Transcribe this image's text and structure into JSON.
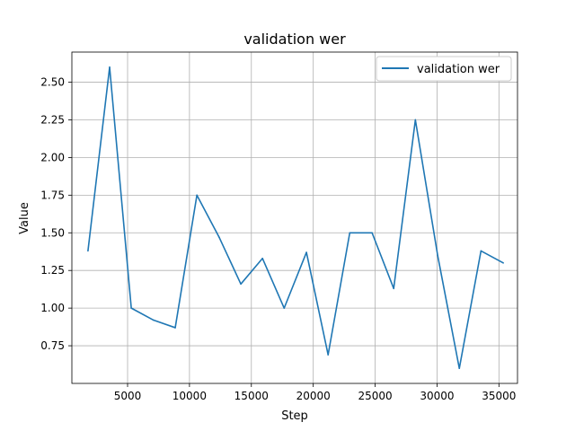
{
  "chart_data": {
    "type": "line",
    "title": "validation wer",
    "xlabel": "Step",
    "ylabel": "Value",
    "xlim": [
      500,
      36500
    ],
    "ylim": [
      0.5,
      2.7
    ],
    "xticks": [
      5000,
      10000,
      15000,
      20000,
      25000,
      30000,
      35000
    ],
    "yticks": [
      0.75,
      1.0,
      1.25,
      1.5,
      1.75,
      2.0,
      2.25,
      2.5
    ],
    "xtick_labels": [
      "5000",
      "10000",
      "15000",
      "20000",
      "25000",
      "30000",
      "35000"
    ],
    "ytick_labels": [
      "0.75",
      "1.00",
      "1.25",
      "1.50",
      "1.75",
      "2.00",
      "2.25",
      "2.50"
    ],
    "grid": true,
    "legend_position": "top-right",
    "series": [
      {
        "name": "validation wer",
        "color": "#1f77b4",
        "x": [
          1800,
          3550,
          5300,
          7100,
          8850,
          10600,
          12400,
          14150,
          15900,
          17650,
          19450,
          21200,
          22950,
          24750,
          26500,
          28250,
          30050,
          31800,
          33550,
          35350
        ],
        "y": [
          1.38,
          2.6,
          1.0,
          0.92,
          0.87,
          1.75,
          1.47,
          1.16,
          1.33,
          1.0,
          1.37,
          0.69,
          1.5,
          1.5,
          1.13,
          2.25,
          1.35,
          0.6,
          1.38,
          1.3
        ]
      }
    ]
  }
}
